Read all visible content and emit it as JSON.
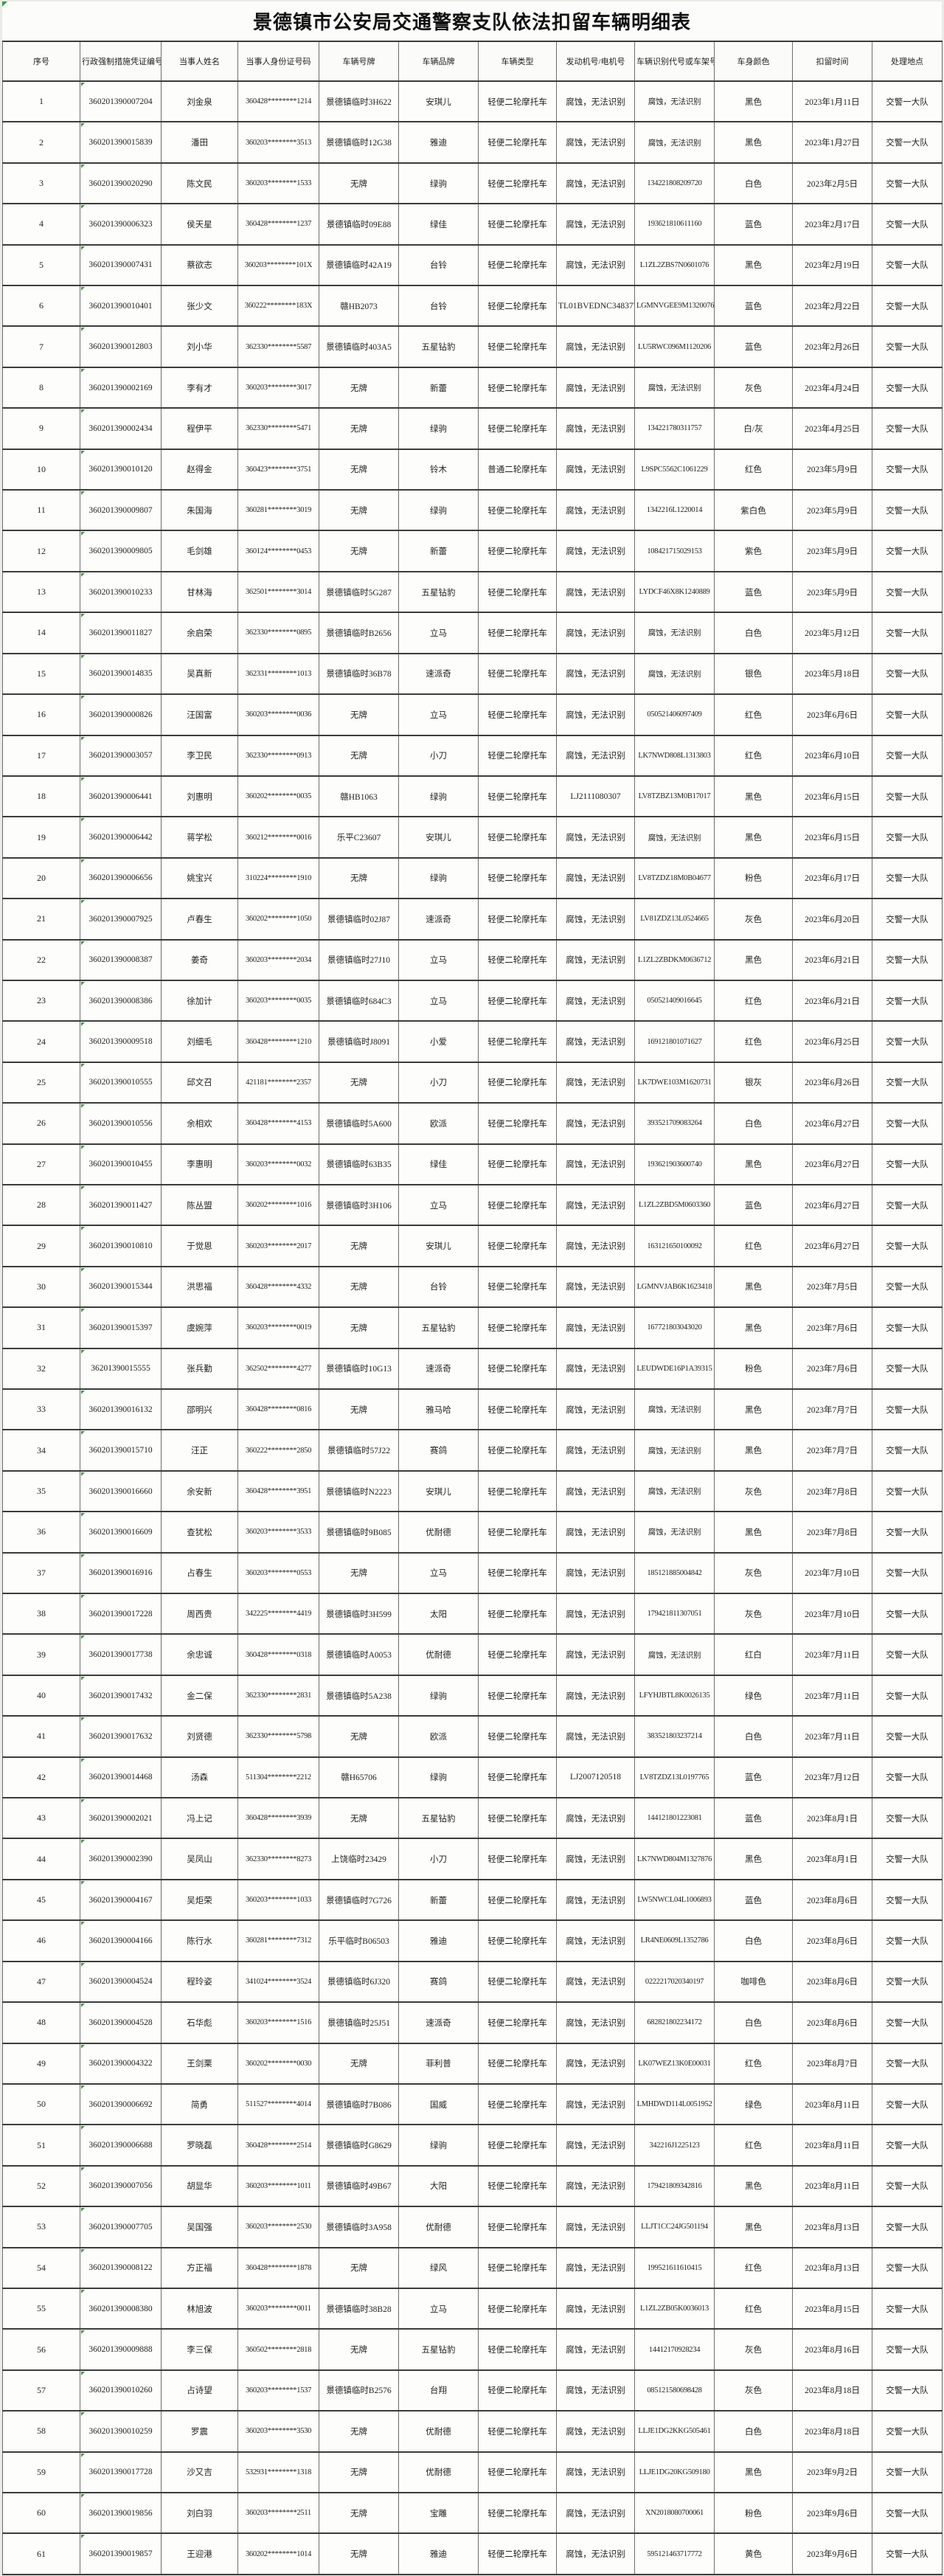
{
  "title": "景德镇市公安局交通警察支队依法扣留车辆明细表",
  "table": {
    "columns": [
      "序号",
      "行政强制措施凭证编号",
      "当事人姓名",
      "当事人身份证号码",
      "车辆号牌",
      "车辆品牌",
      "车辆类型",
      "发动机号/电机号",
      "车辆识别代号或车架号",
      "车身颜色",
      "扣留时间",
      "处理地点"
    ],
    "column_keys": [
      "seq",
      "voucher-no",
      "party-name",
      "party-id",
      "plate-no",
      "brand",
      "vehicle-type",
      "engine-no",
      "vin",
      "body-color",
      "detain-date",
      "handle-place"
    ],
    "rows": [
      [
        "1",
        "360201390007204",
        "刘金泉",
        "360428********1214",
        "景德镇临时3H622",
        "安琪儿",
        "轻便二轮摩托车",
        "腐蚀，无法识别",
        "腐蚀，无法识别",
        "黑色",
        "2023年1月11日",
        "交警一大队"
      ],
      [
        "2",
        "360201390015839",
        "潘田",
        "360203********3513",
        "景德镇临时12G38",
        "雅迪",
        "轻便二轮摩托车",
        "腐蚀，无法识别",
        "腐蚀，无法识别",
        "黑色",
        "2023年1月27日",
        "交警一大队"
      ],
      [
        "3",
        "360201390020290",
        "陈文民",
        "360203********1533",
        "无牌",
        "绿驹",
        "轻便二轮摩托车",
        "腐蚀，无法识别",
        "134221808209720",
        "白色",
        "2023年2月5日",
        "交警一大队"
      ],
      [
        "4",
        "360201390006323",
        "侯天星",
        "360428********1237",
        "景德镇临时09E88",
        "绿佳",
        "轻便二轮摩托车",
        "腐蚀，无法识别",
        "193621810611160",
        "蓝色",
        "2023年2月17日",
        "交警一大队"
      ],
      [
        "5",
        "360201390007431",
        "蔡欲志",
        "360203********101X",
        "景德镇临时42A19",
        "台铃",
        "轻便二轮摩托车",
        "腐蚀，无法识别",
        "L1ZL2ZBS7N0601076",
        "黑色",
        "2023年2月19日",
        "交警一大队"
      ],
      [
        "6",
        "360201390010401",
        "张少文",
        "360222********183X",
        "赣HB2073",
        "台铃",
        "轻便二轮摩托车",
        "TL01BVEDNC348377",
        "LGMNVGEE9M1320076",
        "蓝色",
        "2023年2月22日",
        "交警一大队"
      ],
      [
        "7",
        "360201390012803",
        "刘小华",
        "362330********5587",
        "景德镇临时403A5",
        "五星钻豹",
        "轻便二轮摩托车",
        "腐蚀，无法识别",
        "LU5RWC096M1120206",
        "蓝色",
        "2023年2月26日",
        "交警一大队"
      ],
      [
        "8",
        "360201390002169",
        "李有才",
        "360203********3017",
        "无牌",
        "新蕾",
        "轻便二轮摩托车",
        "腐蚀，无法识别",
        "腐蚀，无法识别",
        "灰色",
        "2023年4月24日",
        "交警一大队"
      ],
      [
        "9",
        "360201390002434",
        "程伊平",
        "362330********5471",
        "无牌",
        "绿驹",
        "轻便二轮摩托车",
        "腐蚀，无法识别",
        "134221780311757",
        "白/灰",
        "2023年4月25日",
        "交警一大队"
      ],
      [
        "10",
        "360201390010120",
        "赵得金",
        "360423********3751",
        "无牌",
        "铃木",
        "普通二轮摩托车",
        "腐蚀，无法识别",
        "L9SPC5562C1061229",
        "红色",
        "2023年5月9日",
        "交警一大队"
      ],
      [
        "11",
        "360201390009807",
        "朱国海",
        "360281********3019",
        "无牌",
        "绿驹",
        "轻便二轮摩托车",
        "腐蚀，无法识别",
        "1342216L1220014",
        "紫白色",
        "2023年5月9日",
        "交警一大队"
      ],
      [
        "12",
        "360201390009805",
        "毛剑雄",
        "360124********0453",
        "无牌",
        "新蕾",
        "轻便二轮摩托车",
        "腐蚀，无法识别",
        "108421715029153",
        "紫色",
        "2023年5月9日",
        "交警一大队"
      ],
      [
        "13",
        "360201390010233",
        "甘林海",
        "362501********3014",
        "景德镇临时5G287",
        "五星钻豹",
        "轻便二轮摩托车",
        "腐蚀，无法识别",
        "LYDCF46X8K1240889",
        "蓝色",
        "2023年5月9日",
        "交警一大队"
      ],
      [
        "14",
        "360201390011827",
        "余启荣",
        "362330********0895",
        "景德镇临时B2656",
        "立马",
        "轻便二轮摩托车",
        "腐蚀，无法识别",
        "腐蚀，无法识别",
        "白色",
        "2023年5月12日",
        "交警一大队"
      ],
      [
        "15",
        "360201390014835",
        "吴真新",
        "362331********1013",
        "景德镇临时36B78",
        "速派奇",
        "轻便二轮摩托车",
        "腐蚀，无法识别",
        "腐蚀，无法识别",
        "银色",
        "2023年5月18日",
        "交警一大队"
      ],
      [
        "16",
        "360201390000826",
        "汪国富",
        "360203********0036",
        "无牌",
        "立马",
        "轻便二轮摩托车",
        "腐蚀，无法识别",
        "050521406097409",
        "红色",
        "2023年6月6日",
        "交警一大队"
      ],
      [
        "17",
        "360201390003057",
        "李卫民",
        "362330********0913",
        "无牌",
        "小刀",
        "轻便二轮摩托车",
        "腐蚀，无法识别",
        "LK7NWD808L1313803",
        "红色",
        "2023年6月10日",
        "交警一大队"
      ],
      [
        "18",
        "360201390006441",
        "刘惠明",
        "360202********0035",
        "赣HB1063",
        "绿驹",
        "轻便二轮摩托车",
        "LJ2111080307",
        "LV8TZBZ13M0B17017",
        "黑色",
        "2023年6月15日",
        "交警一大队"
      ],
      [
        "19",
        "360201390006442",
        "蒋学松",
        "360212********0016",
        "乐平C23607",
        "安琪儿",
        "轻便二轮摩托车",
        "腐蚀，无法识别",
        "腐蚀，无法识别",
        "黑色",
        "2023年6月15日",
        "交警一大队"
      ],
      [
        "20",
        "360201390006656",
        "姚宝兴",
        "310224********1910",
        "无牌",
        "绿驹",
        "轻便二轮摩托车",
        "腐蚀，无法识别",
        "LV8TZDZ18M0B04677",
        "粉色",
        "2023年6月17日",
        "交警一大队"
      ],
      [
        "21",
        "360201390007925",
        "卢春生",
        "360202********1050",
        "景德镇临时02J87",
        "速派奇",
        "轻便二轮摩托车",
        "腐蚀，无法识别",
        "LV81ZDZ13L0524665",
        "灰色",
        "2023年6月20日",
        "交警一大队"
      ],
      [
        "22",
        "360201390008387",
        "姜奇",
        "360203********2034",
        "景德镇临时27J10",
        "立马",
        "轻便二轮摩托车",
        "腐蚀，无法识别",
        "L1ZL2ZBDKM0636712",
        "黑色",
        "2023年6月21日",
        "交警一大队"
      ],
      [
        "23",
        "360201390008386",
        "徐加计",
        "360203********0035",
        "景德镇临时684C3",
        "立马",
        "轻便二轮摩托车",
        "腐蚀，无法识别",
        "050521409016645",
        "红色",
        "2023年6月21日",
        "交警一大队"
      ],
      [
        "24",
        "360201390009518",
        "刘细毛",
        "360428********1210",
        "景德镇临时J8091",
        "小爱",
        "轻便二轮摩托车",
        "腐蚀，无法识别",
        "169121801071627",
        "红色",
        "2023年6月25日",
        "交警一大队"
      ],
      [
        "25",
        "360201390010555",
        "邱文召",
        "421181********2357",
        "无牌",
        "小刀",
        "轻便二轮摩托车",
        "腐蚀，无法识别",
        "LK7DWE103M1620731",
        "银灰",
        "2023年6月26日",
        "交警一大队"
      ],
      [
        "26",
        "360201390010556",
        "余相欢",
        "360428********4153",
        "景德镇临时5A600",
        "欧派",
        "轻便二轮摩托车",
        "腐蚀，无法识别",
        "393521709083264",
        "白色",
        "2023年6月27日",
        "交警一大队"
      ],
      [
        "27",
        "360201390010455",
        "李惠明",
        "360203********0032",
        "景德镇临时63B35",
        "绿佳",
        "轻便二轮摩托车",
        "腐蚀，无法识别",
        "193621903600740",
        "黑色",
        "2023年6月27日",
        "交警一大队"
      ],
      [
        "28",
        "360201390011427",
        "陈丛盟",
        "360202********1016",
        "景德镇临时3H106",
        "立马",
        "轻便二轮摩托车",
        "腐蚀，无法识别",
        "L1ZL2ZBD5M0603360",
        "蓝色",
        "2023年6月27日",
        "交警一大队"
      ],
      [
        "29",
        "360201390010810",
        "于觉恩",
        "360203********2017",
        "无牌",
        "安琪儿",
        "轻便二轮摩托车",
        "腐蚀，无法识别",
        "163121650100092",
        "红色",
        "2023年6月27日",
        "交警一大队"
      ],
      [
        "30",
        "360201390015344",
        "洪思福",
        "360428********4332",
        "无牌",
        "台铃",
        "轻便二轮摩托车",
        "腐蚀，无法识别",
        "LGMNVJAB6K1623418",
        "黑色",
        "2023年7月5日",
        "交警一大队"
      ],
      [
        "31",
        "360201390015397",
        "虞婉萍",
        "360203********0019",
        "无牌",
        "五星钻豹",
        "轻便二轮摩托车",
        "腐蚀，无法识别",
        "167721803043020",
        "黑色",
        "2023年7月6日",
        "交警一大队"
      ],
      [
        "32",
        "36201390015555",
        "张兵勤",
        "362502********4277",
        "景德镇临时10G13",
        "速派奇",
        "轻便二轮摩托车",
        "腐蚀，无法识别",
        "LEUDWDE16P1A39315",
        "粉色",
        "2023年7月6日",
        "交警一大队"
      ],
      [
        "33",
        "360201390016132",
        "邵明兴",
        "360428********0816",
        "无牌",
        "雅马哈",
        "轻便二轮摩托车",
        "腐蚀，无法识别",
        "腐蚀，无法识别",
        "黑色",
        "2023年7月7日",
        "交警一大队"
      ],
      [
        "34",
        "360201390015710",
        "汪正",
        "360222********2850",
        "景德镇临时57J22",
        "赛鸽",
        "轻便二轮摩托车",
        "腐蚀，无法识别",
        "腐蚀，无法识别",
        "黑色",
        "2023年7月7日",
        "交警一大队"
      ],
      [
        "35",
        "360201390016660",
        "余安新",
        "360428********3951",
        "景德镇临时N2223",
        "安琪儿",
        "轻便二轮摩托车",
        "腐蚀，无法识别",
        "腐蚀，无法识别",
        "灰色",
        "2023年7月8日",
        "交警一大队"
      ],
      [
        "36",
        "360201390016609",
        "查犹松",
        "360203********3533",
        "景德镇临时9B085",
        "优耐德",
        "轻便二轮摩托车",
        "腐蚀，无法识别",
        "腐蚀，无法识别",
        "黑色",
        "2023年7月8日",
        "交警一大队"
      ],
      [
        "37",
        "360201390016916",
        "占春生",
        "360203********0553",
        "无牌",
        "立马",
        "轻便二轮摩托车",
        "腐蚀，无法识别",
        "185121885004842",
        "灰色",
        "2023年7月10日",
        "交警一大队"
      ],
      [
        "38",
        "360201390017228",
        "周西贵",
        "342225********4419",
        "景德镇临时3H599",
        "太阳",
        "轻便二轮摩托车",
        "腐蚀，无法识别",
        "179421811307051",
        "灰色",
        "2023年7月10日",
        "交警一大队"
      ],
      [
        "39",
        "360201390017738",
        "余忠诚",
        "360428********0318",
        "景德镇临时A0053",
        "优耐德",
        "轻便二轮摩托车",
        "腐蚀，无法识别",
        "腐蚀，无法识别",
        "红白",
        "2023年7月11日",
        "交警一大队"
      ],
      [
        "40",
        "360201390017432",
        "金二保",
        "362330********2831",
        "景德镇临时5A238",
        "绿驹",
        "轻便二轮摩托车",
        "腐蚀，无法识别",
        "LFYHJBTL8K0026135",
        "绿色",
        "2023年7月11日",
        "交警一大队"
      ],
      [
        "41",
        "360201390017632",
        "刘贤德",
        "362330********5798",
        "无牌",
        "欧派",
        "轻便二轮摩托车",
        "腐蚀，无法识别",
        "383521803237214",
        "白色",
        "2023年7月11日",
        "交警一大队"
      ],
      [
        "42",
        "360201390014468",
        "汤森",
        "511304********2212",
        "赣H65706",
        "绿驹",
        "轻便二轮摩托车",
        "LJ2007120518",
        "LV8TZDZ13L0197765",
        "蓝色",
        "2023年7月12日",
        "交警一大队"
      ],
      [
        "43",
        "360201390002021",
        "冯上记",
        "360428********3939",
        "无牌",
        "五星钻豹",
        "轻便二轮摩托车",
        "腐蚀，无法识别",
        "144121801223081",
        "蓝色",
        "2023年8月1日",
        "交警一大队"
      ],
      [
        "44",
        "360201390002390",
        "吴凤山",
        "362330********8273",
        "上饶临时23429",
        "小刀",
        "轻便二轮摩托车",
        "腐蚀，无法识别",
        "LK7NWD804M1327876",
        "黑色",
        "2023年8月1日",
        "交警一大队"
      ],
      [
        "45",
        "360201390004167",
        "吴炬荣",
        "360203********1033",
        "景德镇临时7G726",
        "新蕾",
        "轻便二轮摩托车",
        "腐蚀，无法识别",
        "LW5NWCL04L1006893",
        "蓝色",
        "2023年8月6日",
        "交警一大队"
      ],
      [
        "46",
        "360201390004166",
        "陈行水",
        "360281********7312",
        "乐平临时B06503",
        "雅迪",
        "轻便二轮摩托车",
        "腐蚀，无法识别",
        "LR4NE0609L1352786",
        "白色",
        "2023年8月6日",
        "交警一大队"
      ],
      [
        "47",
        "360201390004524",
        "程玲姿",
        "341024********3524",
        "景德镇临时6J320",
        "赛鸽",
        "轻便二轮摩托车",
        "腐蚀，无法识别",
        "0222217020340197",
        "咖啡色",
        "2023年8月6日",
        "交警一大队"
      ],
      [
        "48",
        "360201390004528",
        "石华彪",
        "360203********1516",
        "景德镇临时25J51",
        "速派奇",
        "轻便二轮摩托车",
        "腐蚀，无法识别",
        "682821802234172",
        "白色",
        "2023年8月6日",
        "交警一大队"
      ],
      [
        "49",
        "360201390004322",
        "王剑栗",
        "360202********0030",
        "无牌",
        "菲利普",
        "轻便二轮摩托车",
        "腐蚀，无法识别",
        "LK07WEZ13K0E00031",
        "红色",
        "2023年8月7日",
        "交警一大队"
      ],
      [
        "50",
        "360201390006692",
        "简勇",
        "511527********4014",
        "景德镇临时7B086",
        "国威",
        "轻便二轮摩托车",
        "腐蚀，无法识别",
        "LMHDWD114L0051952",
        "绿色",
        "2023年8月11日",
        "交警一大队"
      ],
      [
        "51",
        "360201390006688",
        "罗晓磊",
        "360428********2514",
        "景德镇临时G8629",
        "绿驹",
        "轻便二轮摩托车",
        "腐蚀，无法识别",
        "342216J1225123",
        "红色",
        "2023年8月11日",
        "交警一大队"
      ],
      [
        "52",
        "360201390007056",
        "胡显华",
        "360203********1011",
        "景德镇临时49B67",
        "大阳",
        "轻便二轮摩托车",
        "腐蚀，无法识别",
        "179421809342816",
        "黑色",
        "2023年8月11日",
        "交警一大队"
      ],
      [
        "53",
        "360201390007705",
        "吴国强",
        "360203********2530",
        "景德镇临时3A958",
        "优耐德",
        "轻便二轮摩托车",
        "腐蚀，无法识别",
        "LLJT1CC24JG501194",
        "黑色",
        "2023年8月13日",
        "交警一大队"
      ],
      [
        "54",
        "360201390008122",
        "方正福",
        "360428********1878",
        "无牌",
        "绿风",
        "轻便二轮摩托车",
        "腐蚀，无法识别",
        "199521611610415",
        "红色",
        "2023年8月13日",
        "交警一大队"
      ],
      [
        "55",
        "360201390008380",
        "林旭波",
        "360203********0011",
        "景德镇临时38B28",
        "立马",
        "轻便二轮摩托车",
        "腐蚀，无法识别",
        "L1ZL2ZB05K0036013",
        "红色",
        "2023年8月15日",
        "交警一大队"
      ],
      [
        "56",
        "360201390009888",
        "李三保",
        "360502********2818",
        "无牌",
        "五星钻豹",
        "轻便二轮摩托车",
        "腐蚀，无法识别",
        "14412170928234",
        "灰色",
        "2023年8月16日",
        "交警一大队"
      ],
      [
        "57",
        "360201390010260",
        "占诗望",
        "360203********1537",
        "景德镇临时B2576",
        "台翔",
        "轻便二轮摩托车",
        "腐蚀，无法识别",
        "085121580698428",
        "灰色",
        "2023年8月18日",
        "交警一大队"
      ],
      [
        "58",
        "360201390010259",
        "罗震",
        "360203********3530",
        "无牌",
        "优耐德",
        "轻便二轮摩托车",
        "腐蚀，无法识别",
        "LLJE1DG2KKG505461",
        "白色",
        "2023年8月18日",
        "交警一大队"
      ],
      [
        "59",
        "360201390017728",
        "沙又吉",
        "532931********1318",
        "无牌",
        "优耐德",
        "轻便二轮摩托车",
        "腐蚀，无法识别",
        "LLJE1DG20KG509180",
        "黑色",
        "2023年9月2日",
        "交警一大队"
      ],
      [
        "60",
        "360201390019856",
        "刘白羽",
        "360203********2511",
        "无牌",
        "宝雕",
        "轻便二轮摩托车",
        "腐蚀，无法识别",
        "XN2018080700061",
        "粉色",
        "2023年9月6日",
        "交警一大队"
      ],
      [
        "61",
        "360201390019857",
        "王迎港",
        "360202********1014",
        "无牌",
        "雅迪",
        "轻便二轮摩托车",
        "腐蚀，无法识别",
        "595121463717772",
        "黄色",
        "2023年9月6日",
        "交警一大队"
      ]
    ]
  },
  "colors": {
    "marker_green": "#3d9a43",
    "grid_dark": "#3c3c3c",
    "grid_light": "#6e6e6e",
    "sheet_bg": "#fcfcfb",
    "page_bg": "#e9ebe7"
  }
}
